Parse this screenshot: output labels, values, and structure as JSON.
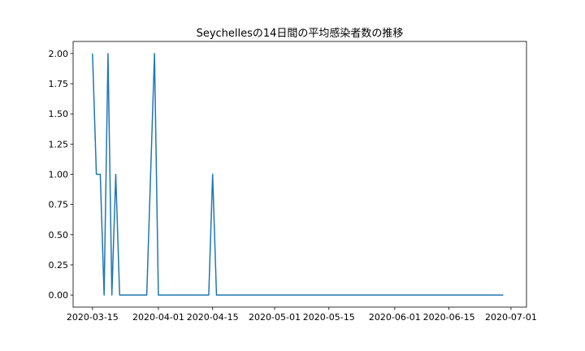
{
  "chart_data": {
    "type": "line",
    "title": "Seychellesの14日間の平均感染者数の推移",
    "xlabel": "",
    "ylabel": "",
    "x": [
      "2020-03-15",
      "2020-03-16",
      "2020-03-17",
      "2020-03-18",
      "2020-03-19",
      "2020-03-20",
      "2020-03-21",
      "2020-03-22",
      "2020-03-23",
      "2020-03-24",
      "2020-03-25",
      "2020-03-26",
      "2020-03-27",
      "2020-03-28",
      "2020-03-29",
      "2020-03-30",
      "2020-03-31",
      "2020-04-01",
      "2020-04-02",
      "2020-04-03",
      "2020-04-04",
      "2020-04-05",
      "2020-04-06",
      "2020-04-07",
      "2020-04-08",
      "2020-04-09",
      "2020-04-10",
      "2020-04-11",
      "2020-04-12",
      "2020-04-13",
      "2020-04-14",
      "2020-04-15",
      "2020-04-16",
      "2020-04-17",
      "2020-04-18",
      "2020-04-19",
      "2020-04-20",
      "2020-04-21",
      "2020-04-22",
      "2020-04-23",
      "2020-04-24",
      "2020-04-25",
      "2020-04-26",
      "2020-04-27",
      "2020-04-28",
      "2020-04-29",
      "2020-04-30",
      "2020-05-01",
      "2020-05-02",
      "2020-05-03",
      "2020-05-04",
      "2020-05-05",
      "2020-05-06",
      "2020-05-07",
      "2020-05-08",
      "2020-05-09",
      "2020-05-10",
      "2020-05-11",
      "2020-05-12",
      "2020-05-13",
      "2020-05-14",
      "2020-05-15",
      "2020-05-16",
      "2020-05-17",
      "2020-05-18",
      "2020-05-19",
      "2020-05-20",
      "2020-05-21",
      "2020-05-22",
      "2020-05-23",
      "2020-05-24",
      "2020-05-25",
      "2020-05-26",
      "2020-05-27",
      "2020-05-28",
      "2020-05-29",
      "2020-05-30",
      "2020-05-31",
      "2020-06-01",
      "2020-06-02",
      "2020-06-03",
      "2020-06-04",
      "2020-06-05",
      "2020-06-06",
      "2020-06-07",
      "2020-06-08",
      "2020-06-09",
      "2020-06-10",
      "2020-06-11",
      "2020-06-12",
      "2020-06-13",
      "2020-06-14",
      "2020-06-15",
      "2020-06-16",
      "2020-06-17",
      "2020-06-18",
      "2020-06-19",
      "2020-06-20",
      "2020-06-21",
      "2020-06-22",
      "2020-06-23",
      "2020-06-24",
      "2020-06-25",
      "2020-06-26",
      "2020-06-27",
      "2020-06-28",
      "2020-06-29"
    ],
    "series": [
      {
        "color": "#1f77b4",
        "values": [
          2,
          1,
          1,
          0,
          2,
          0,
          1,
          0,
          0,
          0,
          0,
          0,
          0,
          0,
          0,
          1,
          2,
          0,
          0,
          0,
          0,
          0,
          0,
          0,
          0,
          0,
          0,
          0,
          0,
          0,
          0,
          1,
          0,
          0,
          0,
          0,
          0,
          0,
          0,
          0,
          0,
          0,
          0,
          0,
          0,
          0,
          0,
          0,
          0,
          0,
          0,
          0,
          0,
          0,
          0,
          0,
          0,
          0,
          0,
          0,
          0,
          0,
          0,
          0,
          0,
          0,
          0,
          0,
          0,
          0,
          0,
          0,
          0,
          0,
          0,
          0,
          0,
          0,
          0,
          0,
          0,
          0,
          0,
          0,
          0,
          0,
          0,
          0,
          0,
          0,
          0,
          0,
          0,
          0,
          0,
          0,
          0,
          0,
          0,
          0,
          0,
          0,
          0,
          0,
          0,
          0,
          0
        ]
      }
    ],
    "xticks": [
      "2020-03-15",
      "2020-04-01",
      "2020-04-15",
      "2020-05-01",
      "2020-05-15",
      "2020-06-01",
      "2020-06-15",
      "2020-07-01"
    ],
    "yticks": [
      "0.00",
      "0.25",
      "0.50",
      "0.75",
      "1.00",
      "1.25",
      "1.50",
      "1.75",
      "2.00"
    ],
    "xlim": [
      "2020-03-10",
      "2020-07-05"
    ],
    "ylim": [
      -0.1,
      2.1
    ],
    "grid": false
  }
}
